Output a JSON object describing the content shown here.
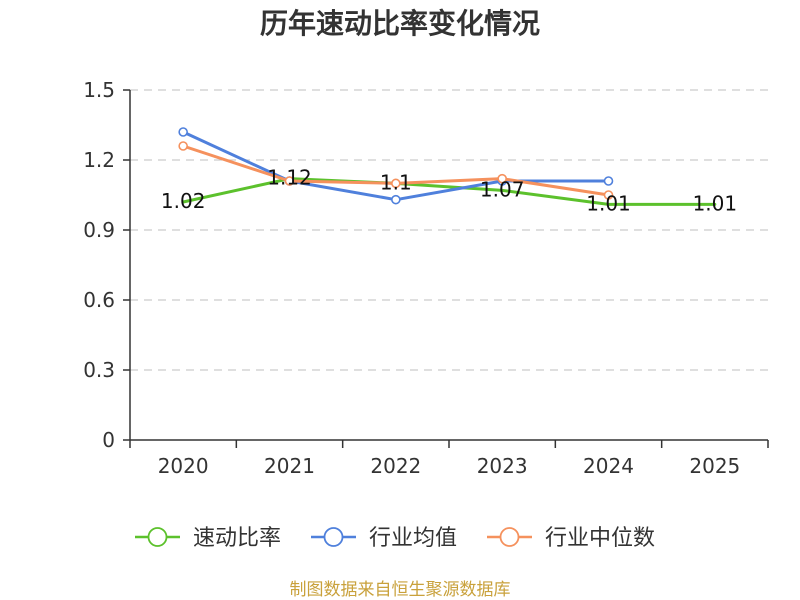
{
  "footer": {
    "source": "制图数据来自恒生聚源数据库"
  },
  "chart_data": {
    "type": "line",
    "title": "历年速动比率变化情况",
    "xlabel": "",
    "ylabel": "",
    "categories": [
      "2020",
      "2021",
      "2022",
      "2023",
      "2024",
      "2025"
    ],
    "ylim": [
      0,
      1.5
    ],
    "yticks": [
      0,
      0.3,
      0.6,
      0.9,
      1.2,
      1.5
    ],
    "ytick_labels": [
      "0",
      "0.3",
      "0.6",
      "0.9",
      "1.2",
      "1.5"
    ],
    "grid": true,
    "legend": "bottom",
    "series": [
      {
        "name": "速动比率",
        "color": "#5cc12c",
        "values": [
          1.02,
          1.12,
          1.1,
          1.07,
          1.01,
          1.01
        ],
        "labels": [
          "1.02",
          "1.12",
          "1.1",
          "1.07",
          "1.01",
          "1.01"
        ]
      },
      {
        "name": "行业均值",
        "color": "#4f80dc",
        "values": [
          1.32,
          1.11,
          1.03,
          1.11,
          1.11,
          null
        ]
      },
      {
        "name": "行业中位数",
        "color": "#f5915d",
        "values": [
          1.26,
          1.11,
          1.1,
          1.12,
          1.05,
          null
        ]
      }
    ]
  }
}
